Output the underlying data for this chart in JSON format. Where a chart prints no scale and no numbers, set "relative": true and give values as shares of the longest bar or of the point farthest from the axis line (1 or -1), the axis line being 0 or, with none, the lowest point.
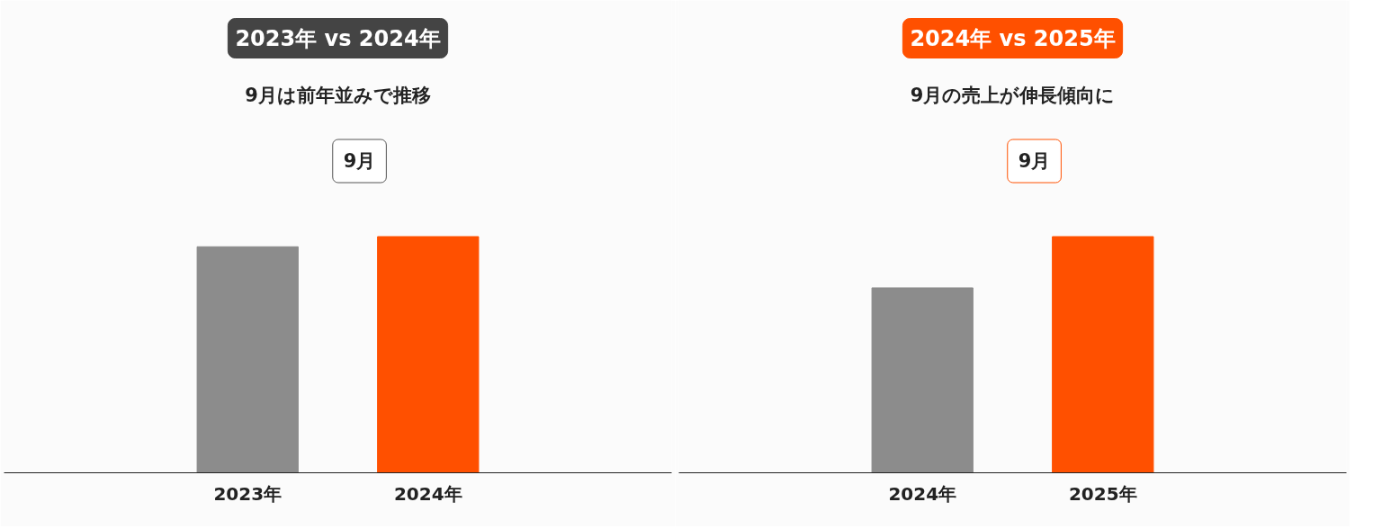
{
  "chart_data": [
    {
      "type": "bar",
      "title": "2023年 vs 2024年",
      "subtitle": "9月は前年並みで推移",
      "annotations": [
        "9月"
      ],
      "categories": [
        "2023年",
        "2024年"
      ],
      "values": [
        0.957,
        1
      ],
      "colors": [
        "#8c8c8c",
        "#ff5000"
      ],
      "relative": true,
      "grid": false
    },
    {
      "type": "bar",
      "title": "2024年 vs 2025年",
      "subtitle": "9月の売上が伸長傾向に",
      "annotations": [
        "9月"
      ],
      "categories": [
        "2024年",
        "2025年"
      ],
      "values": [
        0.783,
        1
      ],
      "colors": [
        "#8c8c8c",
        "#ff5000"
      ],
      "relative": true,
      "grid": false
    }
  ]
}
